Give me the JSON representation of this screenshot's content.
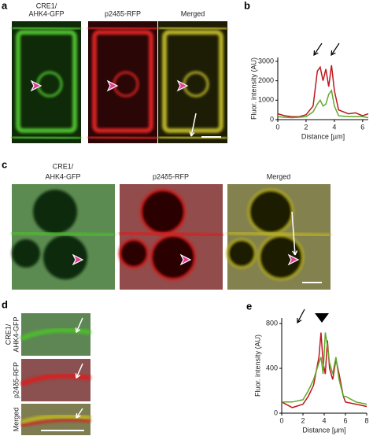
{
  "panels": {
    "a": {
      "label": "a",
      "titles": [
        [
          "CRE1/",
          "AHK4-GFP"
        ],
        [
          "p24δ5-RFP"
        ],
        [
          "Merged"
        ]
      ]
    },
    "c": {
      "label": "c",
      "titles": [
        [
          "CRE1/",
          "AHK4-GFP"
        ],
        [
          "p24δ5-RFP"
        ],
        [
          "Merged"
        ]
      ]
    },
    "d": {
      "label": "d",
      "titles": [
        [
          "CRE1/",
          "AHK4-GFP"
        ],
        [
          "p24δ5-RFP"
        ],
        [
          "Merged"
        ]
      ]
    }
  },
  "chart_data": [
    {
      "type": "line",
      "panel_label": "b",
      "xlabel": "Distance [µm]",
      "ylabel": "Fluor. intensity (AU)",
      "x": [
        0,
        0.5,
        1,
        1.5,
        2,
        2.5,
        2.8,
        3.0,
        3.2,
        3.4,
        3.6,
        3.8,
        4.0,
        4.3,
        5,
        5.5,
        6,
        6.4
      ],
      "series": [
        {
          "name": "p24δ5-RFP",
          "color": "#c0171c",
          "values": [
            300,
            200,
            150,
            150,
            250,
            700,
            2500,
            2700,
            2000,
            2600,
            1700,
            2800,
            1500,
            500,
            300,
            350,
            200,
            300
          ]
        },
        {
          "name": "CRE1/AHK4-GFP",
          "color": "#5fa82b",
          "values": [
            150,
            120,
            100,
            120,
            150,
            400,
            800,
            1000,
            700,
            800,
            1300,
            1500,
            700,
            200,
            150,
            150,
            150,
            100
          ]
        }
      ],
      "xlim": [
        0,
        6.4
      ],
      "ylim": [
        0,
        3200
      ],
      "xticks": [
        0,
        2,
        4,
        6
      ],
      "yticks": [
        0,
        1000,
        2000,
        3000
      ]
    },
    {
      "type": "line",
      "panel_label": "e",
      "xlabel": "Distance [µm]",
      "ylabel": "Fluor. intensity (AU)",
      "x": [
        0,
        1,
        2,
        2.5,
        3,
        3.5,
        3.7,
        3.9,
        4.1,
        4.3,
        4.5,
        4.8,
        5.1,
        5.4,
        5.8,
        6,
        7,
        8
      ],
      "series": [
        {
          "name": "p24δ5-RFP",
          "color": "#c0171c",
          "values": [
            100,
            50,
            80,
            150,
            250,
            500,
            720,
            450,
            350,
            650,
            400,
            300,
            480,
            350,
            150,
            100,
            80,
            60
          ]
        },
        {
          "name": "CRE1/AHK4-GFP",
          "color": "#5fa82b",
          "values": [
            100,
            100,
            120,
            200,
            300,
            450,
            500,
            350,
            720,
            600,
            450,
            350,
            500,
            300,
            150,
            150,
            100,
            80
          ]
        }
      ],
      "xlim": [
        0,
        8
      ],
      "ylim": [
        0,
        850
      ],
      "xticks": [
        0,
        2,
        4,
        6,
        8
      ],
      "yticks": [
        0,
        400,
        800
      ]
    }
  ]
}
